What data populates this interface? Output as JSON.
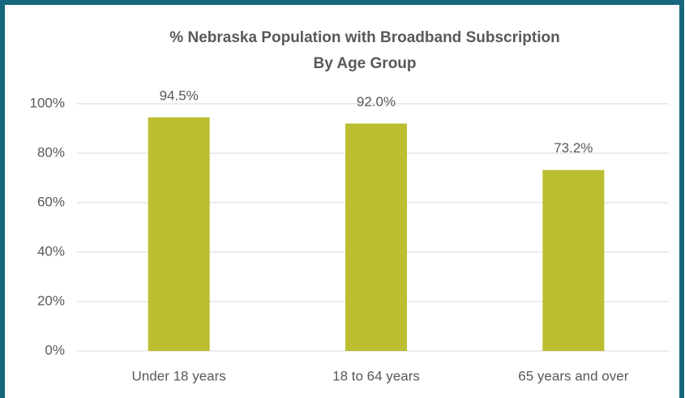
{
  "chart_data": {
    "type": "bar",
    "title": [
      "% Nebraska Population with  Broadband Subscription",
      "By Age Group"
    ],
    "categories": [
      "Under 18 years",
      "18 to 64 years",
      "65 years and over"
    ],
    "values": [
      94.5,
      92.0,
      73.2
    ],
    "value_labels": [
      "94.5%",
      "92.0%",
      "73.2%"
    ],
    "color": "#bcbe32",
    "ylim": [
      0,
      100
    ],
    "yticks": [
      {
        "value": 0,
        "label": "0%"
      },
      {
        "value": 20,
        "label": "20%"
      },
      {
        "value": 40,
        "label": "40%"
      },
      {
        "value": 60,
        "label": "60%"
      },
      {
        "value": 80,
        "label": "80%"
      },
      {
        "value": 100,
        "label": "100%"
      }
    ],
    "grid": true
  }
}
